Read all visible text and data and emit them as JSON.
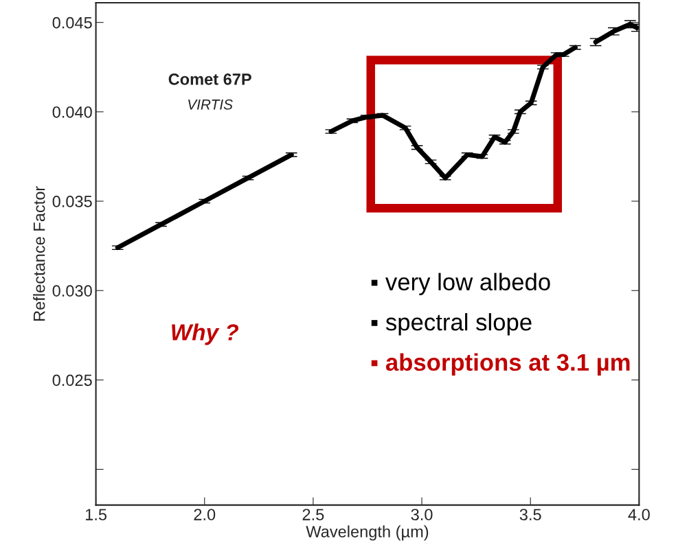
{
  "chart_data": {
    "type": "line",
    "xlabel": "Wavelength (µm)",
    "ylabel": "Reflectance Factor",
    "x": [
      1.6,
      1.8,
      2.0,
      2.2,
      2.4,
      2.5,
      2.582,
      2.68,
      2.744,
      2.82,
      2.924,
      2.978,
      3.041,
      3.108,
      3.209,
      3.278,
      3.335,
      3.383,
      3.421,
      3.453,
      3.503,
      3.557,
      3.62,
      3.652,
      3.706,
      3.75,
      3.8,
      3.883,
      3.959,
      3.99
    ],
    "series": [
      {
        "color": "#000000",
        "values": [
          0.0324,
          0.0337,
          0.035,
          0.0363,
          0.0376,
          null,
          0.0389,
          0.0395,
          0.0397,
          0.0398,
          0.0391,
          0.038,
          0.0372,
          0.0363,
          0.0376,
          0.0375,
          0.0386,
          0.0383,
          0.0389,
          0.04,
          0.0405,
          0.0425,
          0.0432,
          0.0432,
          0.0436,
          null,
          0.0439,
          0.0445,
          0.0449,
          0.0447
        ],
        "errors": [
          0.0001,
          0.0001,
          0.0001,
          0.0001,
          0.0001,
          null,
          0.0001,
          0.0001,
          0.0001,
          0.0001,
          0.0001,
          0.0001,
          0.0001,
          0.0001,
          0.0001,
          0.0001,
          0.0001,
          0.0001,
          0.0001,
          0.0001,
          0.0001,
          0.0001,
          0.0001,
          0.0001,
          0.0001,
          null,
          0.0002,
          0.0002,
          0.0002,
          0.0002
        ]
      }
    ],
    "xlim": [
      1.5,
      4.0
    ],
    "ylim": [
      0.018,
      0.0461
    ],
    "xticks": [
      1.5,
      {
        "value": 2.0,
        "label": "2.0"
      },
      2.5,
      {
        "value": 3.0,
        "label": "3.0"
      },
      3.5,
      {
        "value": 4.0,
        "label": "4.0"
      }
    ],
    "yticks": [
      {
        "value": 0.02,
        "label": null
      },
      0.025,
      {
        "value": 0.03,
        "label": "0.030"
      },
      0.035,
      {
        "value": 0.04,
        "label": "0.040"
      },
      0.045
    ],
    "marker": "none",
    "line_style": "solid",
    "grid": false,
    "legend": false,
    "annotations": [
      "Comet 67P",
      "VIRTIS",
      "Why ?",
      "▪ very low albedo",
      "▪ spectral slope",
      "▪ absorptions at 3.1 µm"
    ]
  }
}
